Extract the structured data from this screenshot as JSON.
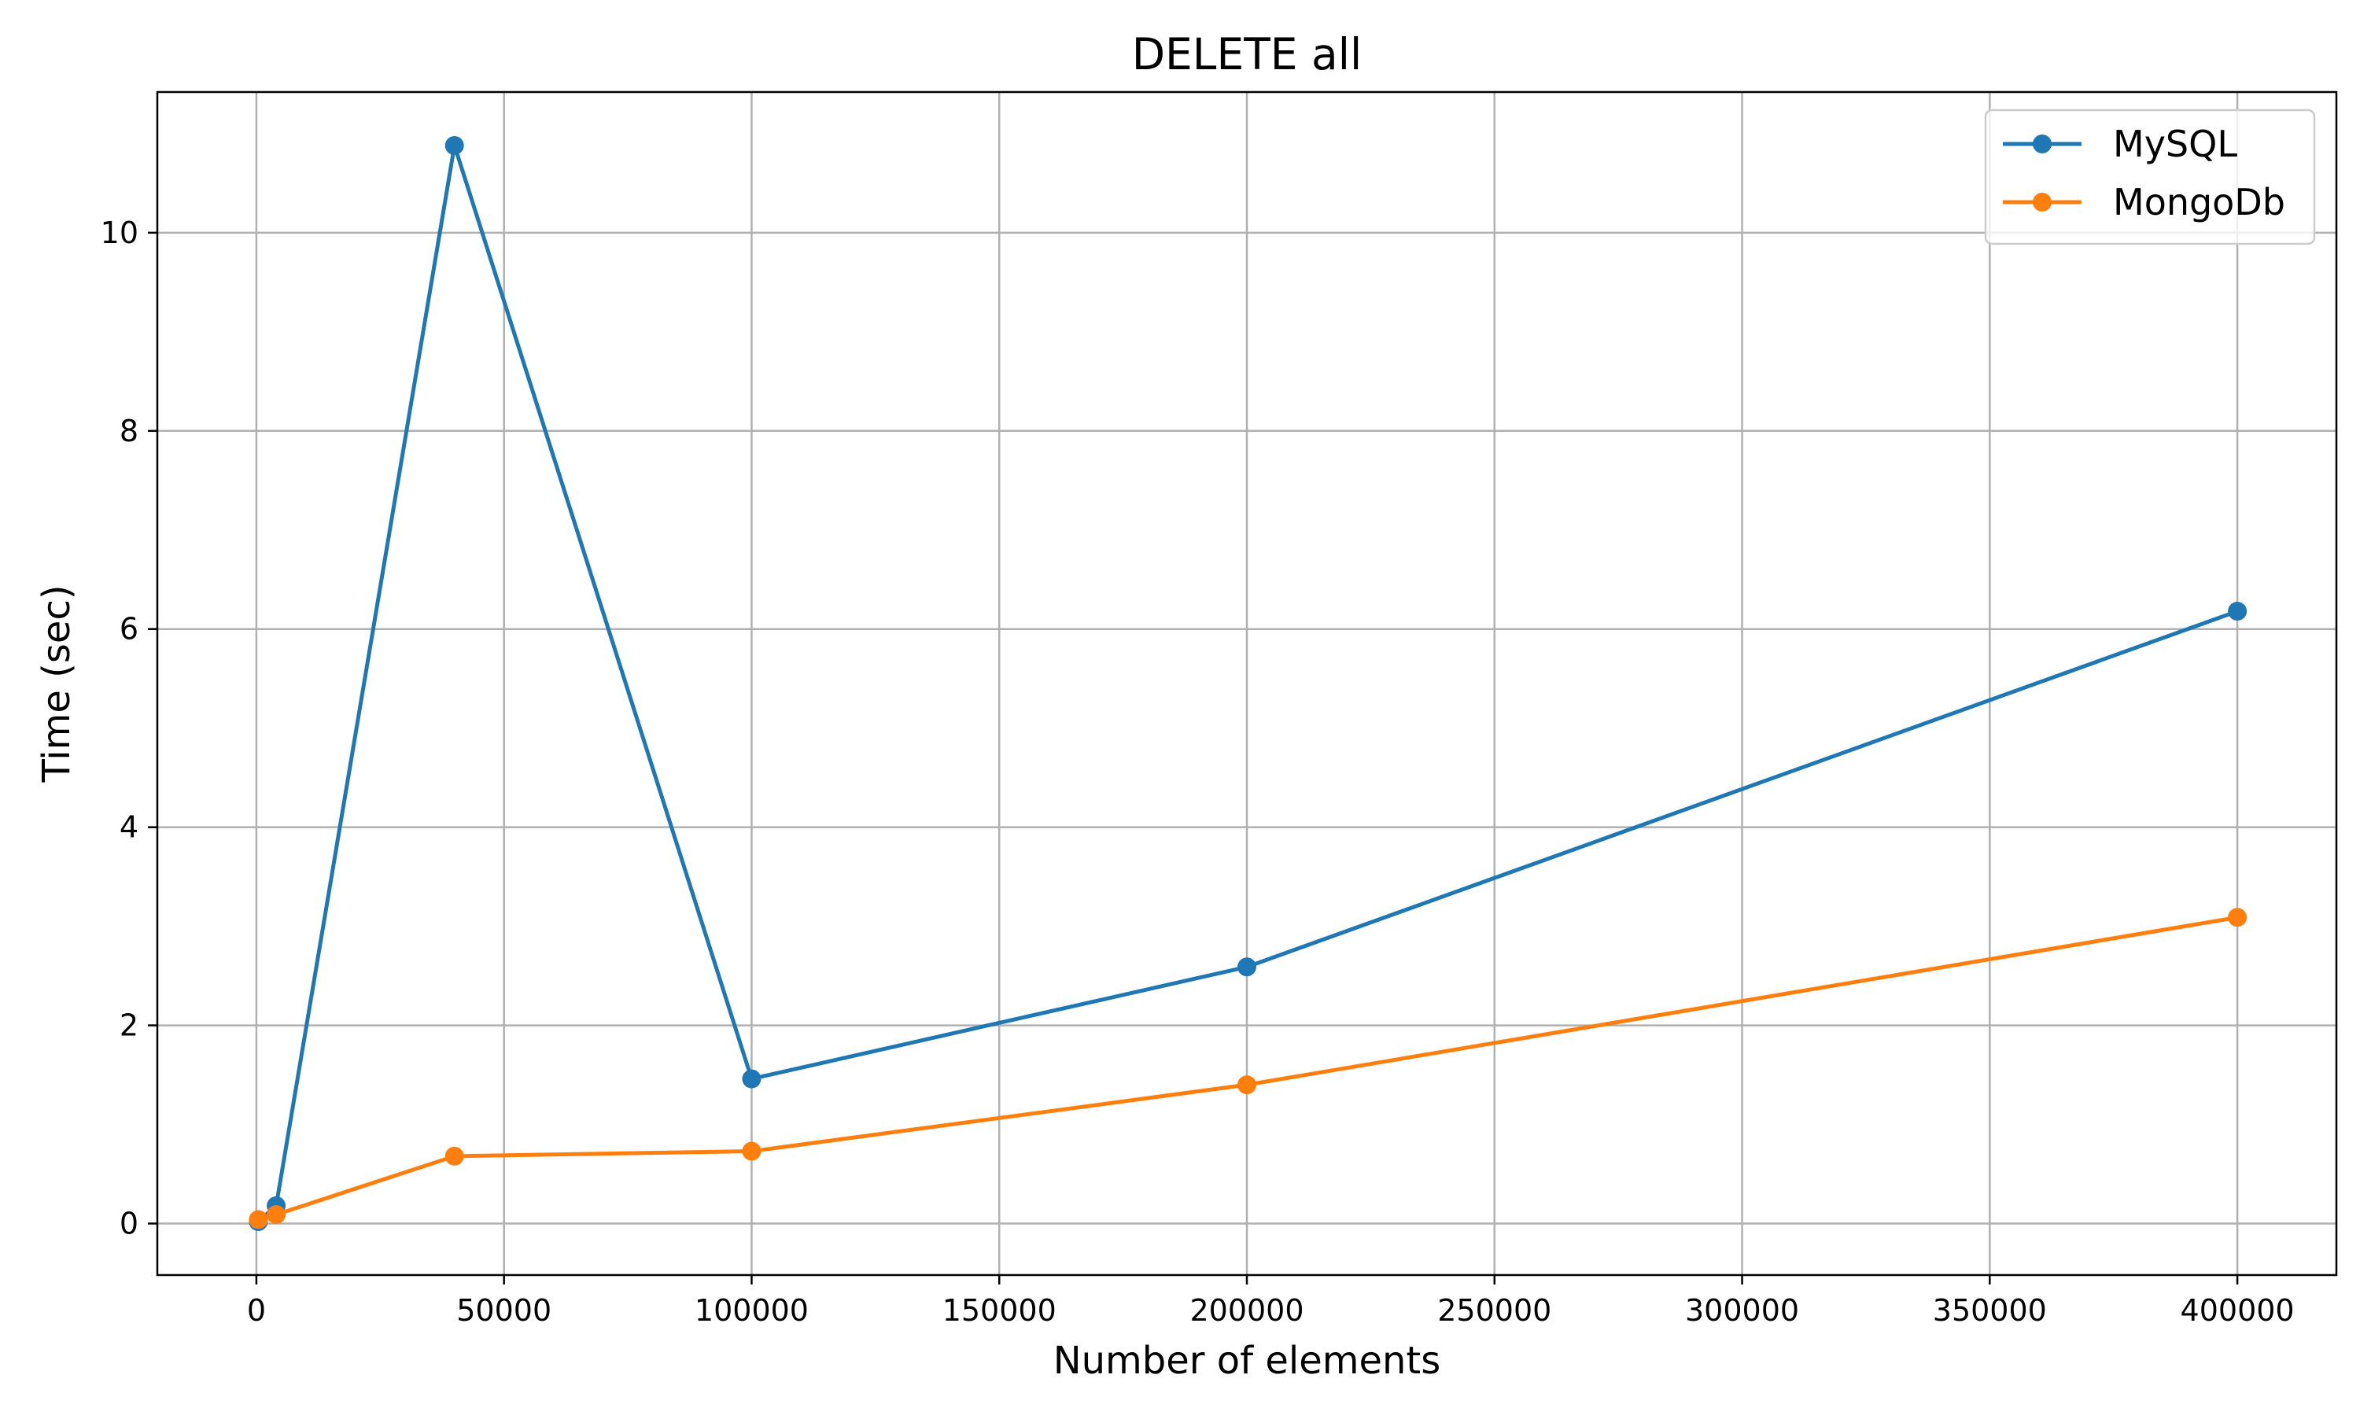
{
  "chart_data": {
    "type": "line",
    "title": "DELETE all",
    "xlabel": "Number of elements",
    "ylabel": "Time (sec)",
    "xlim": [
      -20000,
      420000
    ],
    "ylim": [
      -0.52,
      11.42
    ],
    "xticks": [
      0,
      50000,
      100000,
      150000,
      200000,
      250000,
      300000,
      350000,
      400000
    ],
    "yticks": [
      0,
      2,
      4,
      6,
      8,
      10
    ],
    "grid": true,
    "legend_position": "top-right",
    "series": [
      {
        "name": "MySQL",
        "color": "#1f77b4",
        "x": [
          400,
          4000,
          40000,
          100000,
          200000,
          400000
        ],
        "y": [
          0.02,
          0.18,
          10.88,
          1.46,
          2.59,
          6.18
        ]
      },
      {
        "name": "MongoDb",
        "color": "#ff7f0e",
        "x": [
          400,
          4000,
          40000,
          100000,
          200000,
          400000
        ],
        "y": [
          0.04,
          0.09,
          0.68,
          0.73,
          1.4,
          3.09
        ]
      }
    ]
  }
}
